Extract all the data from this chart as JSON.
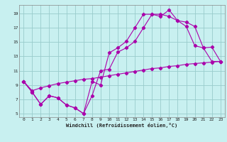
{
  "xlabel": "Windchill (Refroidissement éolien,°C)",
  "bg_color": "#c8f0f0",
  "line_color": "#aa00aa",
  "grid_color": "#99cccc",
  "xlim": [
    -0.5,
    23.5
  ],
  "ylim": [
    4.5,
    20.2
  ],
  "xticks": [
    0,
    1,
    2,
    3,
    4,
    5,
    6,
    7,
    8,
    9,
    10,
    11,
    12,
    13,
    14,
    15,
    16,
    17,
    18,
    19,
    20,
    21,
    22,
    23
  ],
  "yticks": [
    5,
    7,
    9,
    11,
    13,
    15,
    17,
    19
  ],
  "line1_x": [
    0,
    1,
    2,
    3,
    4,
    5,
    6,
    7,
    8,
    9,
    10,
    11,
    12,
    13,
    14,
    15,
    16,
    17,
    18,
    19,
    20,
    21,
    22,
    23
  ],
  "line1_y": [
    9.5,
    8.0,
    6.3,
    7.5,
    7.2,
    6.2,
    5.8,
    5.0,
    7.5,
    11.0,
    11.2,
    13.6,
    14.2,
    15.1,
    17.0,
    18.9,
    18.9,
    18.6,
    18.0,
    17.8,
    17.2,
    14.2,
    14.3,
    12.3
  ],
  "line2_x": [
    0,
    1,
    2,
    3,
    4,
    5,
    6,
    7,
    8,
    9,
    10,
    11,
    12,
    13,
    14,
    15,
    16,
    17,
    18,
    19,
    20,
    21,
    22,
    23
  ],
  "line2_y": [
    9.5,
    8.0,
    6.3,
    7.5,
    7.2,
    6.2,
    5.8,
    5.0,
    9.5,
    9.0,
    13.5,
    14.2,
    15.1,
    17.0,
    18.9,
    18.9,
    18.6,
    19.5,
    18.0,
    17.2,
    14.5,
    14.2,
    12.3,
    12.3
  ],
  "line3_x": [
    0,
    1,
    2,
    3,
    4,
    5,
    6,
    7,
    8,
    9,
    10,
    11,
    12,
    13,
    14,
    15,
    16,
    17,
    18,
    19,
    20,
    21,
    22,
    23
  ],
  "line3_y": [
    9.5,
    8.2,
    8.6,
    8.9,
    9.2,
    9.4,
    9.6,
    9.8,
    9.9,
    10.1,
    10.3,
    10.5,
    10.7,
    10.9,
    11.1,
    11.3,
    11.4,
    11.6,
    11.7,
    11.9,
    12.0,
    12.1,
    12.2,
    12.3
  ]
}
